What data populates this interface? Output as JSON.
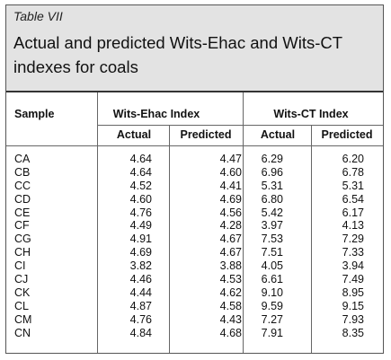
{
  "table": {
    "label": "Table VII",
    "title": "Actual and predicted Wits-Ehac and Wits-CT indexes for coals",
    "headers": {
      "sample": "Sample",
      "group1": "Wits-Ehac Index",
      "group2": "Wits-CT Index",
      "actual": "Actual",
      "predicted": "Predicted"
    },
    "rows": [
      {
        "sample": "CA",
        "ehac_actual": "4.64",
        "ehac_predicted": "4.47",
        "ct_actual": "6.29",
        "ct_predicted": "6.20"
      },
      {
        "sample": "CB",
        "ehac_actual": "4.64",
        "ehac_predicted": "4.60",
        "ct_actual": "6.96",
        "ct_predicted": "6.78"
      },
      {
        "sample": "CC",
        "ehac_actual": "4.52",
        "ehac_predicted": "4.41",
        "ct_actual": "5.31",
        "ct_predicted": "5.31"
      },
      {
        "sample": "CD",
        "ehac_actual": "4.60",
        "ehac_predicted": "4.69",
        "ct_actual": "6.80",
        "ct_predicted": "6.54"
      },
      {
        "sample": "CE",
        "ehac_actual": "4.76",
        "ehac_predicted": "4.56",
        "ct_actual": "5.42",
        "ct_predicted": "6.17"
      },
      {
        "sample": "CF",
        "ehac_actual": "4.49",
        "ehac_predicted": "4.28",
        "ct_actual": "3.97",
        "ct_predicted": "4.13"
      },
      {
        "sample": "CG",
        "ehac_actual": "4.91",
        "ehac_predicted": "4.67",
        "ct_actual": "7.53",
        "ct_predicted": "7.29"
      },
      {
        "sample": "CH",
        "ehac_actual": "4.69",
        "ehac_predicted": "4.67",
        "ct_actual": "7.51",
        "ct_predicted": "7.33"
      },
      {
        "sample": "CI",
        "ehac_actual": "3.82",
        "ehac_predicted": "3.88",
        "ct_actual": "4.05",
        "ct_predicted": "3.94"
      },
      {
        "sample": "CJ",
        "ehac_actual": "4.46",
        "ehac_predicted": "4.53",
        "ct_actual": "6.61",
        "ct_predicted": "7.49"
      },
      {
        "sample": "CK",
        "ehac_actual": "4.44",
        "ehac_predicted": "4.62",
        "ct_actual": "9.10",
        "ct_predicted": "8.95"
      },
      {
        "sample": "CL",
        "ehac_actual": "4.87",
        "ehac_predicted": "4.58",
        "ct_actual": "9.59",
        "ct_predicted": "9.15"
      },
      {
        "sample": "CM",
        "ehac_actual": "4.76",
        "ehac_predicted": "4.43",
        "ct_actual": "7.27",
        "ct_predicted": "7.93"
      },
      {
        "sample": "CN",
        "ehac_actual": "4.84",
        "ehac_predicted": "4.68",
        "ct_actual": "7.91",
        "ct_predicted": "8.35"
      }
    ]
  }
}
